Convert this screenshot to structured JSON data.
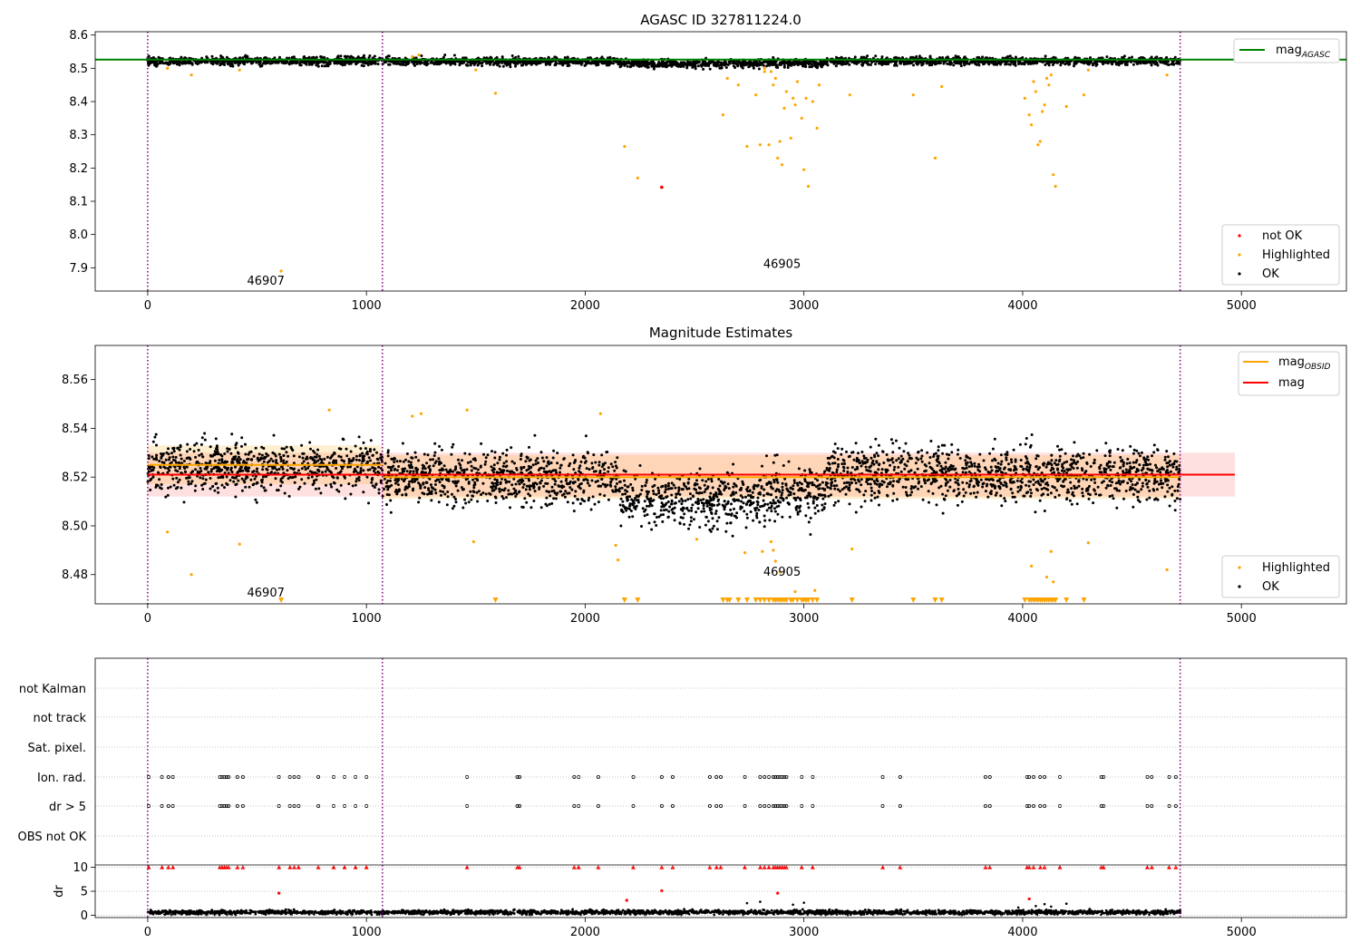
{
  "chart_data": [
    {
      "type": "scatter",
      "title": "AGASC ID 327811224.0",
      "xlim": [
        -240,
        5480
      ],
      "ylim": [
        7.83,
        8.61
      ],
      "xticks": [
        0,
        1000,
        2000,
        3000,
        4000,
        5000
      ],
      "yticks": [
        7.9,
        8.0,
        8.1,
        8.2,
        8.3,
        8.4,
        8.5,
        8.6
      ],
      "grid": false,
      "vlines": [
        0,
        1073,
        4720
      ],
      "obsid_labels": [
        {
          "text": "46907",
          "x": 540,
          "y": 7.86
        },
        {
          "text": "46905",
          "x": 2900,
          "y": 7.91
        }
      ],
      "reference_lines": [
        {
          "name": "mag_AGASC",
          "value": 8.526,
          "color": "#008000"
        }
      ],
      "legends": [
        {
          "placement": "top-right",
          "entries": [
            {
              "label": "mag",
              "sub": "AGASC",
              "color": "#008000",
              "kind": "line"
            }
          ]
        },
        {
          "placement": "bottom-right",
          "entries": [
            {
              "label": "not OK",
              "color": "#ff0000",
              "kind": "point"
            },
            {
              "label": "Highlighted",
              "color": "#ffa500",
              "kind": "point"
            },
            {
              "label": "OK",
              "color": "#000000",
              "kind": "point"
            }
          ]
        }
      ],
      "series": [
        {
          "name": "OK",
          "color": "#000000",
          "kind": "band_cloud",
          "segments": [
            {
              "x0": 0,
              "x1": 1073,
              "mean": 8.522,
              "spread": 0.012
            },
            {
              "x0": 1073,
              "x1": 2150,
              "mean": 8.521,
              "spread": 0.012
            },
            {
              "x0": 2150,
              "x1": 2800,
              "mean": 8.514,
              "spread": 0.012
            },
            {
              "x0": 2800,
              "x1": 3100,
              "mean": 8.516,
              "spread": 0.012
            },
            {
              "x0": 3100,
              "x1": 4720,
              "mean": 8.522,
              "spread": 0.012
            }
          ]
        },
        {
          "name": "Highlighted",
          "color": "#ffa500",
          "points": [
            [
              610,
              7.89
            ],
            [
              200,
              8.48
            ],
            [
              420,
              8.495
            ],
            [
              90,
              8.5
            ],
            [
              1590,
              8.425
            ],
            [
              1500,
              8.495
            ],
            [
              2180,
              8.265
            ],
            [
              2240,
              8.17
            ],
            [
              2630,
              8.36
            ],
            [
              2650,
              8.47
            ],
            [
              2700,
              8.45
            ],
            [
              2740,
              8.265
            ],
            [
              2780,
              8.42
            ],
            [
              2800,
              8.27
            ],
            [
              2820,
              8.49
            ],
            [
              2840,
              8.27
            ],
            [
              2860,
              8.45
            ],
            [
              2870,
              8.47
            ],
            [
              2880,
              8.23
            ],
            [
              2890,
              8.28
            ],
            [
              2900,
              8.21
            ],
            [
              2910,
              8.38
            ],
            [
              2920,
              8.43
            ],
            [
              2940,
              8.29
            ],
            [
              2950,
              8.41
            ],
            [
              2960,
              8.39
            ],
            [
              2970,
              8.46
            ],
            [
              2990,
              8.35
            ],
            [
              3000,
              8.195
            ],
            [
              3010,
              8.41
            ],
            [
              3020,
              8.145
            ],
            [
              3040,
              8.4
            ],
            [
              3060,
              8.32
            ],
            [
              3070,
              8.45
            ],
            [
              3210,
              8.42
            ],
            [
              3500,
              8.42
            ],
            [
              3600,
              8.23
            ],
            [
              3630,
              8.445
            ],
            [
              4010,
              8.41
            ],
            [
              4030,
              8.36
            ],
            [
              4040,
              8.33
            ],
            [
              4050,
              8.46
            ],
            [
              4060,
              8.43
            ],
            [
              4070,
              8.27
            ],
            [
              4080,
              8.28
            ],
            [
              4090,
              8.37
            ],
            [
              4100,
              8.39
            ],
            [
              4110,
              8.47
            ],
            [
              4120,
              8.45
            ],
            [
              4130,
              8.48
            ],
            [
              4140,
              8.18
            ],
            [
              4150,
              8.145
            ],
            [
              4200,
              8.385
            ],
            [
              4280,
              8.42
            ],
            [
              4300,
              8.495
            ],
            [
              4660,
              8.48
            ],
            [
              1210,
              8.535
            ],
            [
              1240,
              8.54
            ],
            [
              2820,
              8.5
            ],
            [
              2850,
              8.49
            ]
          ]
        },
        {
          "name": "not OK",
          "color": "#ff0000",
          "points": [
            [
              2350,
              8.142
            ]
          ]
        }
      ]
    },
    {
      "type": "scatter",
      "title": "Magnitude Estimates",
      "xlim": [
        -240,
        5480
      ],
      "ylim": [
        8.468,
        8.574
      ],
      "xticks": [
        0,
        1000,
        2000,
        3000,
        4000,
        5000
      ],
      "yticks": [
        8.48,
        8.5,
        8.52,
        8.54,
        8.56
      ],
      "grid": false,
      "vlines": [
        0,
        1073,
        4720
      ],
      "obsid_labels": [
        {
          "text": "46907",
          "x": 540,
          "y": 8.4725
        },
        {
          "text": "46905",
          "x": 2900,
          "y": 8.481
        }
      ],
      "reference_lines": [
        {
          "name": "mag",
          "value": 8.521,
          "x0": 0,
          "x1": 4970,
          "color": "#ff0000",
          "band": [
            8.512,
            8.53
          ]
        },
        {
          "name": "mag_OBSID",
          "color": "#ffa500",
          "segments": [
            {
              "x0": 0,
              "x1": 1073,
              "value": 8.525,
              "band": [
                8.517,
                8.533
              ]
            },
            {
              "x0": 1073,
              "x1": 4720,
              "value": 8.52,
              "band": [
                8.511,
                8.529
              ]
            }
          ]
        }
      ],
      "legends": [
        {
          "placement": "top-right",
          "entries": [
            {
              "label": "mag",
              "sub": "OBSID",
              "color": "#ffa500",
              "kind": "line"
            },
            {
              "label": "mag",
              "color": "#ff0000",
              "kind": "line"
            }
          ]
        },
        {
          "placement": "bottom-right",
          "entries": [
            {
              "label": "Highlighted",
              "color": "#ffa500",
              "kind": "point"
            },
            {
              "label": "OK",
              "color": "#000000",
              "kind": "point"
            }
          ]
        }
      ],
      "series": [
        {
          "name": "OK",
          "color": "#000000",
          "kind": "band_cloud",
          "segments": [
            {
              "x0": 0,
              "x1": 1073,
              "mean": 8.524,
              "spread": 0.01
            },
            {
              "x0": 1073,
              "x1": 2150,
              "mean": 8.52,
              "spread": 0.011
            },
            {
              "x0": 2150,
              "x1": 2800,
              "mean": 8.511,
              "spread": 0.011
            },
            {
              "x0": 2800,
              "x1": 3100,
              "mean": 8.514,
              "spread": 0.011
            },
            {
              "x0": 3100,
              "x1": 4720,
              "mean": 8.521,
              "spread": 0.011
            }
          ]
        },
        {
          "name": "Highlighted",
          "color": "#ffa500",
          "points": [
            [
              90,
              8.4975
            ],
            [
              200,
              8.48
            ],
            [
              420,
              8.4925
            ],
            [
              830,
              8.5475
            ],
            [
              1210,
              8.545
            ],
            [
              1250,
              8.546
            ],
            [
              1460,
              8.5475
            ],
            [
              1490,
              8.4935
            ],
            [
              2070,
              8.546
            ],
            [
              2140,
              8.492
            ],
            [
              2150,
              8.486
            ],
            [
              2510,
              8.4945
            ],
            [
              2730,
              8.489
            ],
            [
              2810,
              8.4895
            ],
            [
              2850,
              8.4935
            ],
            [
              2860,
              8.49
            ],
            [
              2870,
              8.4855
            ],
            [
              2890,
              8.481
            ],
            [
              2960,
              8.473
            ],
            [
              3050,
              8.4735
            ],
            [
              3220,
              8.4905
            ],
            [
              4040,
              8.4835
            ],
            [
              4110,
              8.479
            ],
            [
              4130,
              8.4895
            ],
            [
              4140,
              8.477
            ],
            [
              4300,
              8.493
            ],
            [
              4660,
              8.482
            ]
          ]
        },
        {
          "name": "Highlighted (off-scale)",
          "color": "#ffa500",
          "marker": "triangle-down",
          "y": 8.4695,
          "x": [
            610,
            1590,
            2180,
            2240,
            2630,
            2650,
            2660,
            2700,
            2740,
            2780,
            2800,
            2820,
            2840,
            2860,
            2870,
            2880,
            2890,
            2900,
            2910,
            2920,
            2940,
            2950,
            2970,
            2990,
            3000,
            3010,
            3020,
            3040,
            3060,
            3220,
            3500,
            3600,
            3630,
            4010,
            4030,
            4040,
            4050,
            4060,
            4070,
            4080,
            4090,
            4100,
            4110,
            4120,
            4130,
            4140,
            4150,
            4200,
            4280
          ]
        }
      ]
    },
    {
      "type": "scatter",
      "title": "",
      "xlim": [
        -240,
        5480
      ],
      "xticks": [
        0,
        1000,
        2000,
        3000,
        4000,
        5000
      ],
      "vlines": [
        0,
        1073,
        4720
      ],
      "flag_rows": [
        "not Kalman",
        "not track",
        "Sat. pixel.",
        "Ion. rad.",
        "dr > 5",
        "OBS not OK"
      ],
      "flag_points": {
        "Ion. rad.": [
          5,
          65,
          95,
          115,
          330,
          340,
          350,
          360,
          370,
          410,
          435,
          600,
          650,
          670,
          690,
          780,
          850,
          900,
          950,
          1000,
          1460,
          1690,
          1700,
          1950,
          1970,
          2060,
          2220,
          2350,
          2400,
          2570,
          2600,
          2620,
          2730,
          2800,
          2820,
          2840,
          2860,
          2870,
          2880,
          2890,
          2900,
          2910,
          2920,
          2990,
          3040,
          3360,
          3440,
          3830,
          3850,
          4020,
          4030,
          4050,
          4080,
          4100,
          4170,
          4360,
          4370,
          4570,
          4590,
          4670,
          4700
        ],
        "dr > 5": [
          5,
          65,
          95,
          115,
          330,
          340,
          350,
          360,
          370,
          410,
          435,
          600,
          650,
          670,
          690,
          780,
          850,
          900,
          950,
          1000,
          1460,
          1690,
          1700,
          1950,
          1970,
          2060,
          2220,
          2350,
          2400,
          2570,
          2600,
          2620,
          2730,
          2800,
          2820,
          2840,
          2860,
          2870,
          2880,
          2890,
          2900,
          2910,
          2920,
          2990,
          3040,
          3360,
          3440,
          3830,
          3850,
          4020,
          4030,
          4050,
          4080,
          4100,
          4170,
          4360,
          4370,
          4570,
          4590,
          4670,
          4700
        ]
      },
      "dr_panel": {
        "ylabel": "dr",
        "ylim": [
          -0.5,
          10.5
        ],
        "yticks": [
          0,
          5,
          10
        ],
        "ok_level": 0.6,
        "ok_spread": 0.45,
        "capped_value": 10,
        "capped_x": [
          5,
          65,
          95,
          115,
          330,
          340,
          350,
          360,
          370,
          410,
          435,
          600,
          650,
          670,
          690,
          780,
          850,
          900,
          950,
          1000,
          1460,
          1690,
          1700,
          1950,
          1970,
          2060,
          2220,
          2350,
          2400,
          2570,
          2600,
          2620,
          2730,
          2800,
          2820,
          2840,
          2860,
          2870,
          2880,
          2890,
          2900,
          2910,
          2920,
          2990,
          3040,
          3360,
          3440,
          3830,
          3850,
          4020,
          4030,
          4050,
          4080,
          4100,
          4170,
          4360,
          4370,
          4570,
          4590,
          4670,
          4700
        ],
        "outliers": [
          [
            600,
            4.6
          ],
          [
            2190,
            3.1
          ],
          [
            2350,
            5.1
          ],
          [
            2880,
            4.6
          ],
          [
            4030,
            3.4
          ],
          [
            2740,
            2.5
          ],
          [
            2800,
            2.8
          ],
          [
            2950,
            2.2
          ],
          [
            3000,
            2.6
          ],
          [
            4100,
            2.3
          ],
          [
            4200,
            2.4
          ],
          [
            4060,
            1.9
          ],
          [
            4130,
            1.8
          ],
          [
            3980,
            1.6
          ]
        ]
      }
    }
  ]
}
